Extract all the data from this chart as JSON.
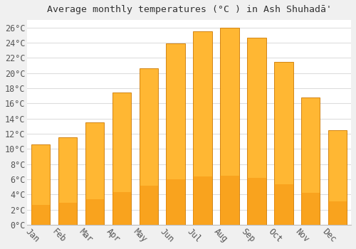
{
  "title": "Average monthly temperatures (°C ) in Ash Shuhadā'",
  "months": [
    "Jan",
    "Feb",
    "Mar",
    "Apr",
    "May",
    "Jun",
    "Jul",
    "Aug",
    "Sep",
    "Oct",
    "Nov",
    "Dec"
  ],
  "temperatures": [
    10.6,
    11.5,
    13.5,
    17.4,
    20.6,
    23.9,
    25.5,
    26.0,
    24.7,
    21.5,
    16.8,
    12.5
  ],
  "bar_color_top": "#FFB733",
  "bar_color_bottom": "#F5900A",
  "bar_edge_color": "#CC7700",
  "ylim": [
    0,
    27
  ],
  "ytick_step": 2,
  "plot_bg_color": "#ffffff",
  "fig_bg_color": "#f0f0f0",
  "grid_color": "#dddddd",
  "title_fontsize": 9.5,
  "tick_fontsize": 8.5,
  "label_rotation": -45
}
